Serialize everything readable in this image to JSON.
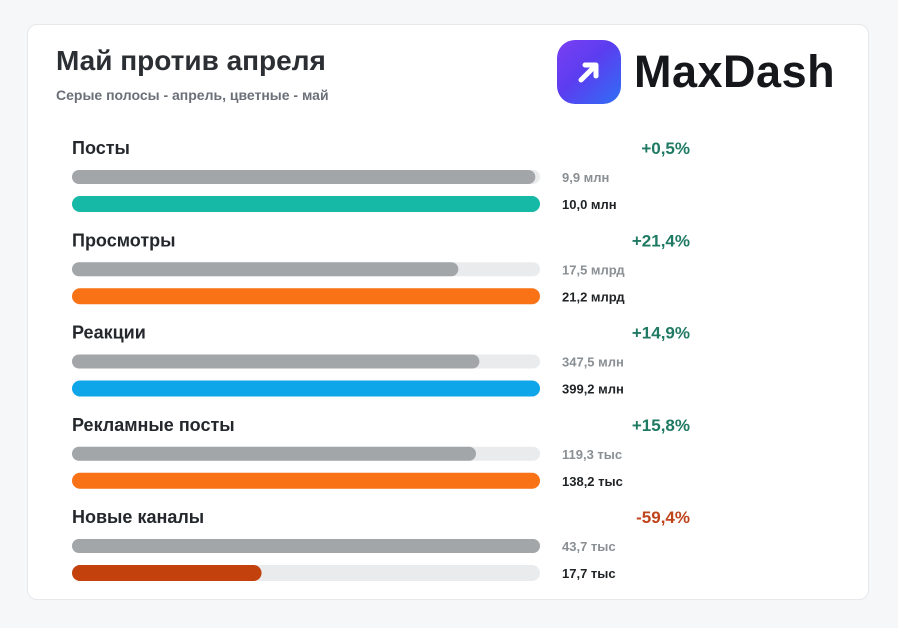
{
  "header": {
    "title": "Май против апреля",
    "subtitle": "Серые полосы - апрель, цветные - май",
    "logo_text": "MaxDash",
    "logo_icon": "arrow-up-right-icon"
  },
  "colors": {
    "april_bar": "#a2a6a8",
    "track": "#e9ebed",
    "positive": "#1f7a63",
    "negative": "#c0441b"
  },
  "chart_data": {
    "type": "bar",
    "orientation": "horizontal",
    "title": "Май против апреля",
    "subtitle": "Серые полосы - апрель, цветные - май",
    "categories": [
      "Посты",
      "Просмотры",
      "Реакции",
      "Рекламные посты",
      "Новые каналы"
    ],
    "series": [
      {
        "name": "апрель",
        "values": [
          9.9,
          17.5,
          347.5,
          119.3,
          43.7
        ],
        "labels": [
          "9,9 млн",
          "17,5 млрд",
          "347,5 млн",
          "119,3 тыс",
          "43,7 тыс"
        ]
      },
      {
        "name": "май",
        "values": [
          10.0,
          21.2,
          399.2,
          138.2,
          17.7
        ],
        "labels": [
          "10,0 млн",
          "21,2 млрд",
          "399,2 млн",
          "138,2 тыс",
          "17,7 тыс"
        ]
      }
    ],
    "units": [
      "млн",
      "млрд",
      "млн",
      "тыс",
      "тыс"
    ],
    "changes": [
      "+0,5%",
      "+21,4%",
      "+14,9%",
      "+15,8%",
      "-59,4%"
    ],
    "may_colors": [
      "#16b9a6",
      "#f97316",
      "#0ea5e9",
      "#f97316",
      "#c2410c"
    ],
    "scale": "each row scaled to its own maximum of the two months"
  }
}
